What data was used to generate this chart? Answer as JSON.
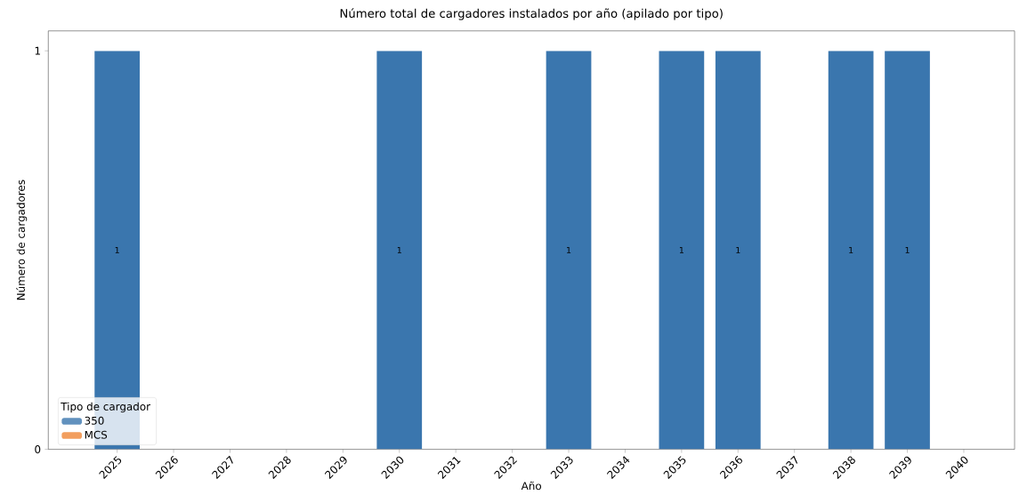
{
  "chart_data": {
    "type": "bar",
    "title": "Número total de cargadores instalados por año (apilado por tipo)",
    "xlabel": "Año",
    "ylabel": "Número de cargadores",
    "legend_title": "Tipo de cargador",
    "categories": [
      "2025",
      "2026",
      "2027",
      "2028",
      "2029",
      "2030",
      "2031",
      "2032",
      "2033",
      "2034",
      "2035",
      "2036",
      "2037",
      "2038",
      "2039",
      "2040"
    ],
    "series": [
      {
        "name": "350",
        "color": "#3a76ae",
        "values": [
          1,
          0,
          0,
          0,
          0,
          1,
          0,
          0,
          1,
          0,
          1,
          1,
          0,
          1,
          1,
          0
        ],
        "value_labels": [
          "1",
          null,
          null,
          null,
          null,
          "1",
          null,
          null,
          "1",
          null,
          "1",
          "1",
          null,
          "1",
          "1",
          null
        ]
      },
      {
        "name": "MCS",
        "color": "#ef8636",
        "values": [
          0,
          0,
          0,
          0,
          0,
          0,
          0,
          0,
          0,
          0,
          0,
          0,
          0,
          0,
          0,
          0
        ]
      }
    ],
    "stacked": true,
    "ylim": [
      0,
      1.05
    ],
    "yticks": [
      0,
      1
    ],
    "legend": "bottom left"
  }
}
